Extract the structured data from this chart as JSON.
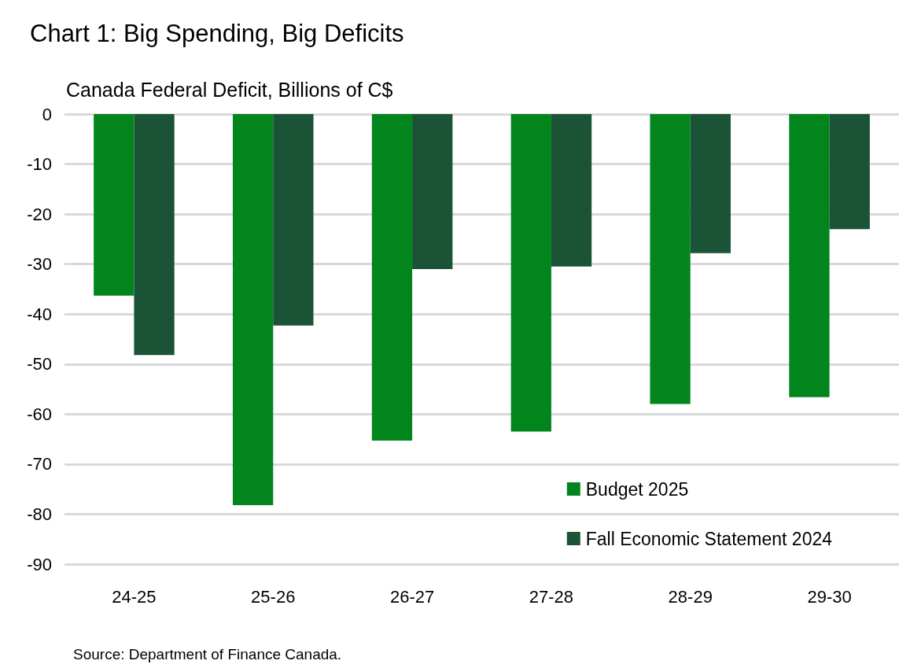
{
  "chart_data": {
    "type": "bar",
    "title": "Chart 1: Big Spending, Big Deficits",
    "subtitle": "Canada Federal Deficit, Billions of C$",
    "categories": [
      "24-25",
      "25-26",
      "26-27",
      "27-28",
      "28-29",
      "29-30"
    ],
    "series": [
      {
        "name": "Budget 2025",
        "color": "#03851e",
        "values": [
          -36.3,
          -78.2,
          -65.3,
          -63.5,
          -58.0,
          -56.6
        ]
      },
      {
        "name": "Fall Economic Statement 2024",
        "color": "#1b5336",
        "values": [
          -48.2,
          -42.3,
          -31.0,
          -30.5,
          -27.8,
          -23.0
        ]
      }
    ],
    "ylim": [
      -90,
      0
    ],
    "yticks": [
      -90,
      -80,
      -70,
      -60,
      -50,
      -40,
      -30,
      -20,
      -10,
      0
    ],
    "grid": "y",
    "legend": "bottom right",
    "annotations": [
      "Source: Department of Finance Canada."
    ]
  }
}
